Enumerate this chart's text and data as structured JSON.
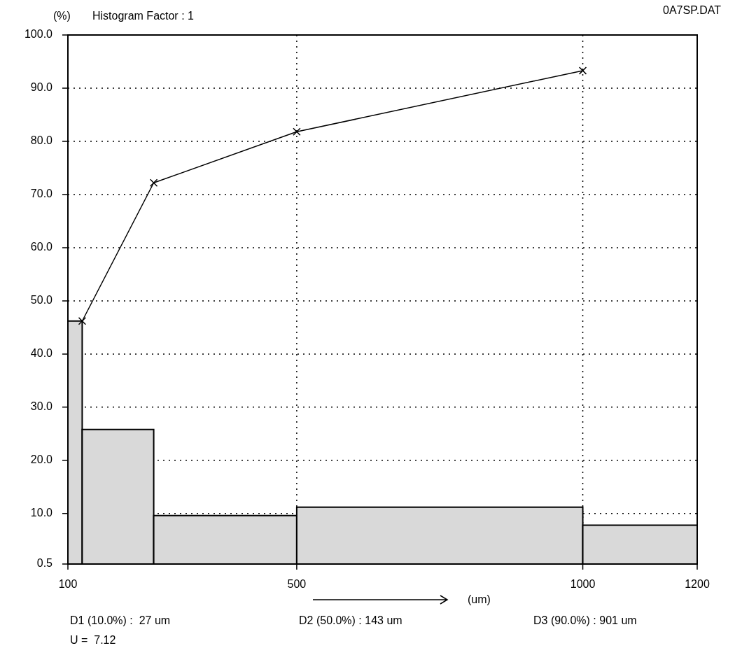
{
  "chart_data": {
    "type": "histogram",
    "title": "Histogram Factor : 1",
    "ylabel": "(%)",
    "xlabel": "(um)",
    "annotations": [
      "0A7SP.DAT",
      "D1 (10.0%) :  27 um",
      "D2 (50.0%) : 143 um",
      "D3 (90.0%) : 901 um",
      "U =  7.12"
    ],
    "bins": [
      100,
      125,
      250,
      500,
      1000,
      1200
    ],
    "values": [
      46.2,
      25.8,
      9.6,
      11.2,
      7.8
    ],
    "color": "#d9d9d9",
    "series": [
      {
        "type": "line",
        "x": [
          125,
          250,
          500,
          1000
        ],
        "values": [
          46.2,
          72.2,
          81.8,
          93.3
        ],
        "color": "#000000",
        "marker": "cross",
        "line_style": "solid"
      }
    ],
    "xlim": [
      100,
      1200
    ],
    "xticks": [
      100,
      500,
      1000,
      1200
    ],
    "ylim": [
      0.5,
      100
    ],
    "yticks": [
      0.5,
      {
        "value": 10,
        "label": "10.0"
      },
      {
        "value": 20,
        "label": "20.0"
      },
      {
        "value": 30,
        "label": "30.0"
      },
      {
        "value": 40,
        "label": "40.0"
      },
      {
        "value": 50,
        "label": "50.0"
      },
      {
        "value": 60,
        "label": "60.0"
      },
      {
        "value": 70,
        "label": "70.0"
      },
      {
        "value": 80,
        "label": "80.0"
      },
      {
        "value": 90,
        "label": "90.0"
      },
      {
        "value": 100,
        "label": "100.0"
      }
    ],
    "grid": true
  }
}
